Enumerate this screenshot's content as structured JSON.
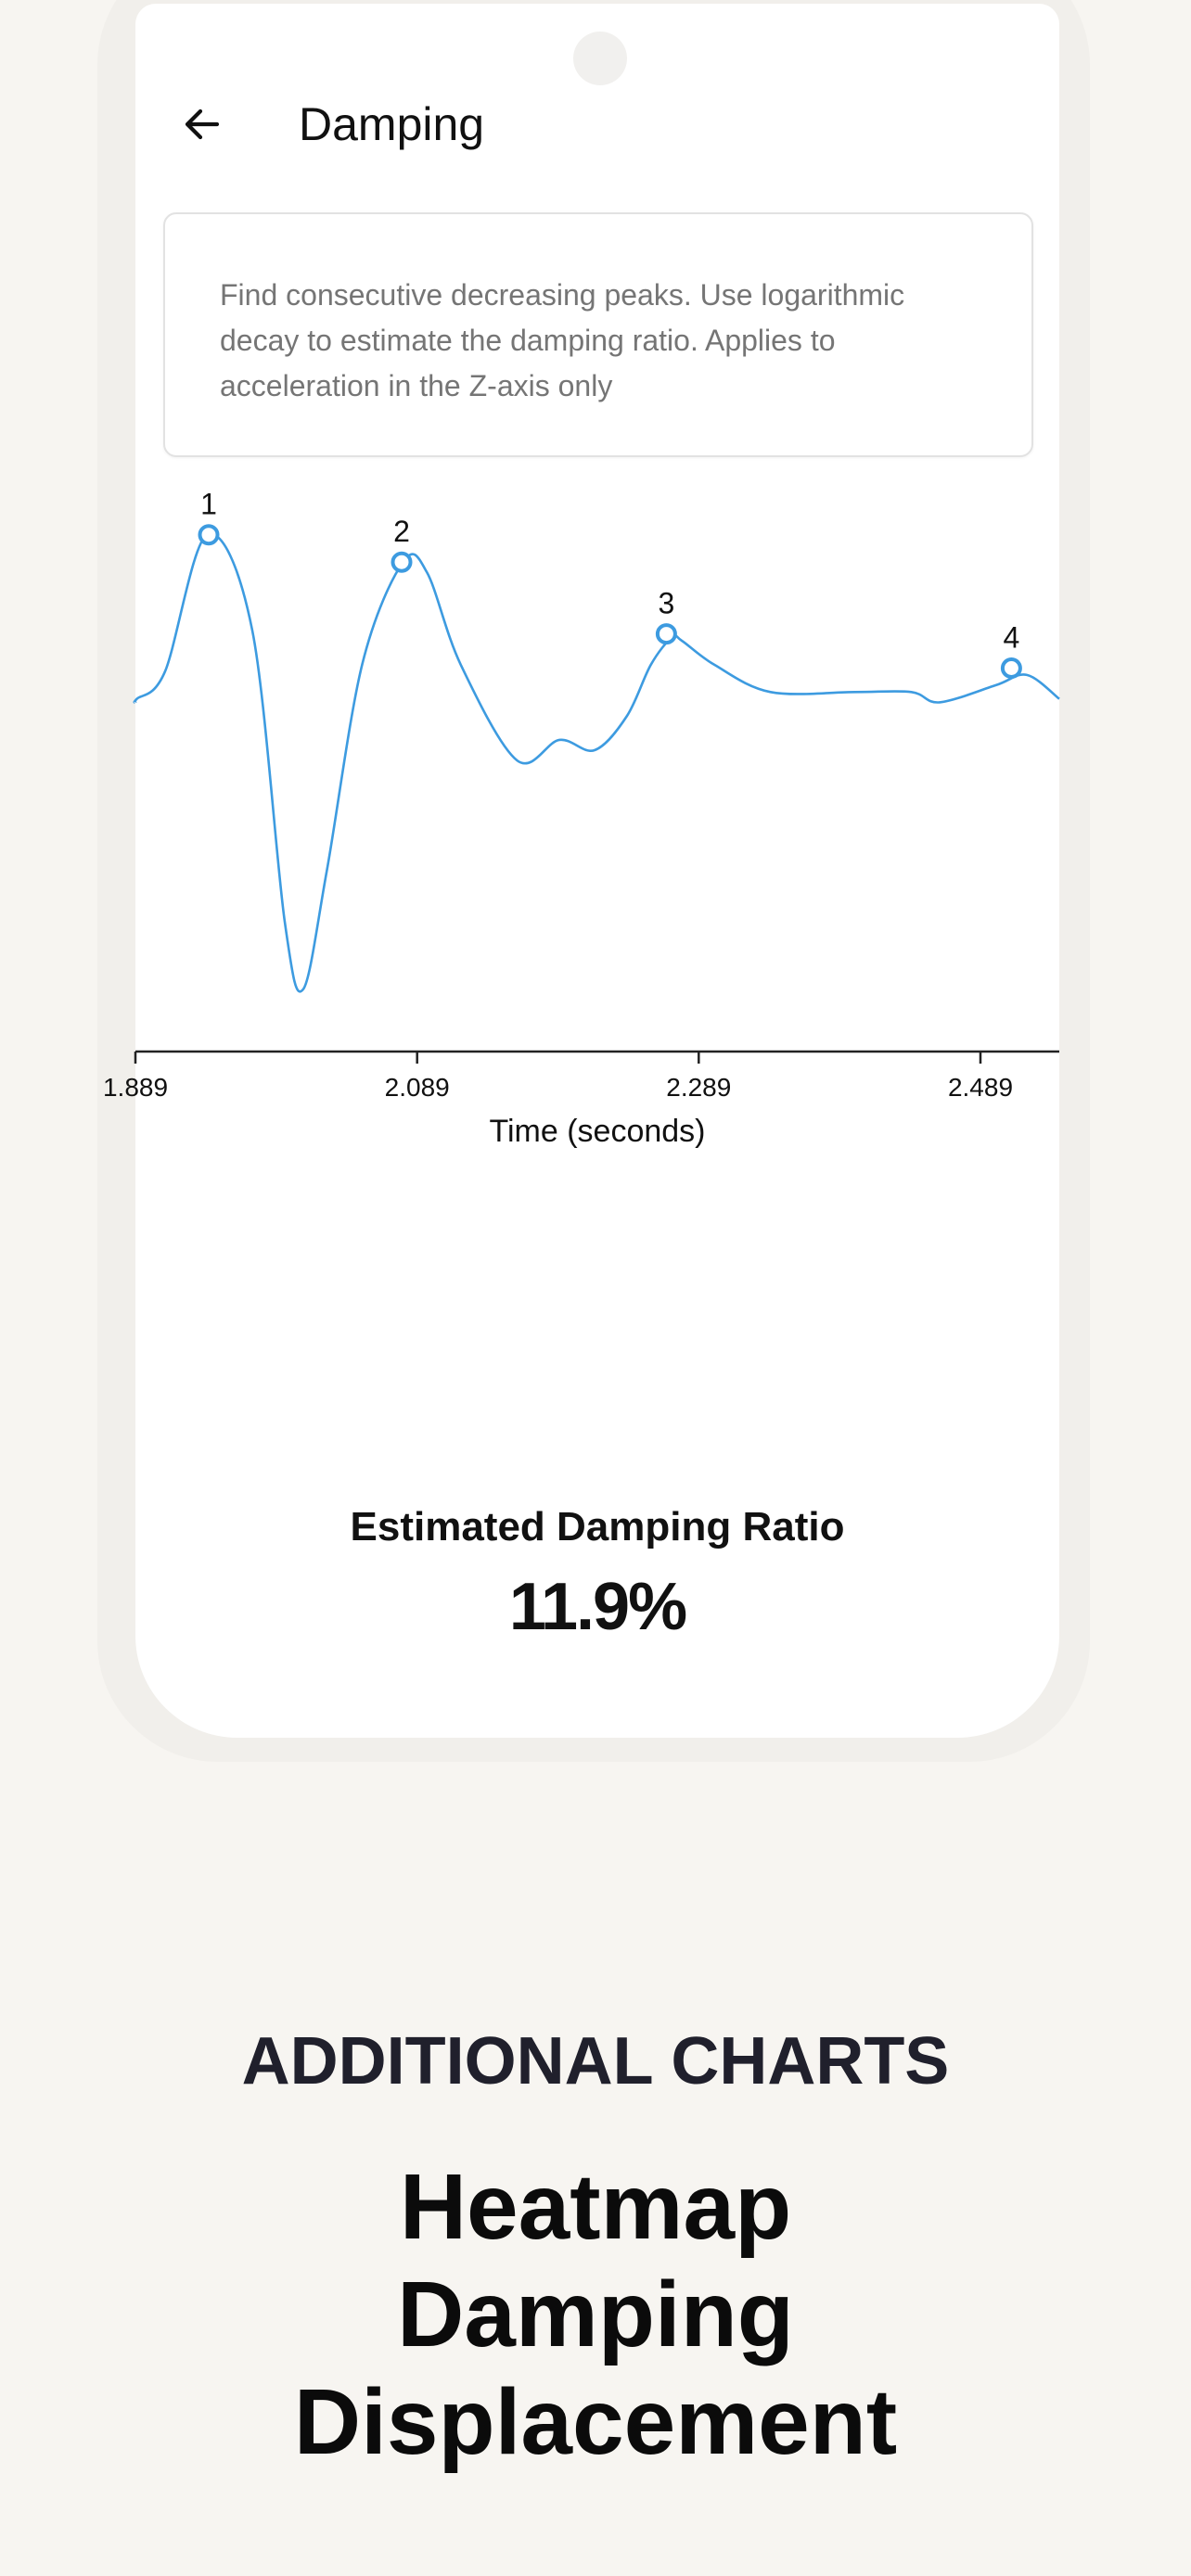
{
  "app": {
    "title": "Damping",
    "back_icon": "arrow-left-icon",
    "description": "Find consecutive decreasing peaks. Use logarithmic decay to estimate the damping ratio. Applies to acceleration in the Z-axis only"
  },
  "chart_data": {
    "type": "line",
    "xlabel": "Time (seconds)",
    "ylabel": "",
    "x_ticks": [
      "1.889",
      "2.089",
      "2.289",
      "2.489"
    ],
    "xlim": [
      1.889,
      2.545
    ],
    "series": [
      {
        "color": "#3d9be0",
        "x": [
          1.889,
          1.89,
          1.91,
          1.94,
          1.972,
          1.995,
          2.008,
          2.025,
          2.05,
          2.079,
          2.096,
          2.12,
          2.16,
          2.19,
          2.215,
          2.238,
          2.255,
          2.27,
          2.277,
          2.3,
          2.34,
          2.4,
          2.44,
          2.46,
          2.5,
          2.522,
          2.545
        ],
        "y": [
          0.19,
          0.2,
          0.28,
          0.68,
          0.4,
          -0.45,
          -0.65,
          -0.3,
          0.3,
          0.6,
          0.57,
          0.3,
          0.02,
          0.08,
          0.05,
          0.15,
          0.3,
          0.38,
          0.37,
          0.3,
          0.22,
          0.22,
          0.22,
          0.19,
          0.24,
          0.27,
          0.2
        ]
      }
    ],
    "peaks": [
      {
        "label": "1",
        "x": 1.941,
        "y": 0.68
      },
      {
        "label": "2",
        "x": 2.078,
        "y": 0.6
      },
      {
        "label": "3",
        "x": 2.266,
        "y": 0.39
      },
      {
        "label": "4",
        "x": 2.511,
        "y": 0.29
      }
    ],
    "grid": false,
    "legend": "none"
  },
  "result": {
    "label": "Estimated Damping Ratio",
    "value": "11.9%"
  },
  "marketing": {
    "eyebrow": "ADDITIONAL CHARTS",
    "features": [
      "Heatmap",
      "Damping",
      "Displacement"
    ]
  }
}
